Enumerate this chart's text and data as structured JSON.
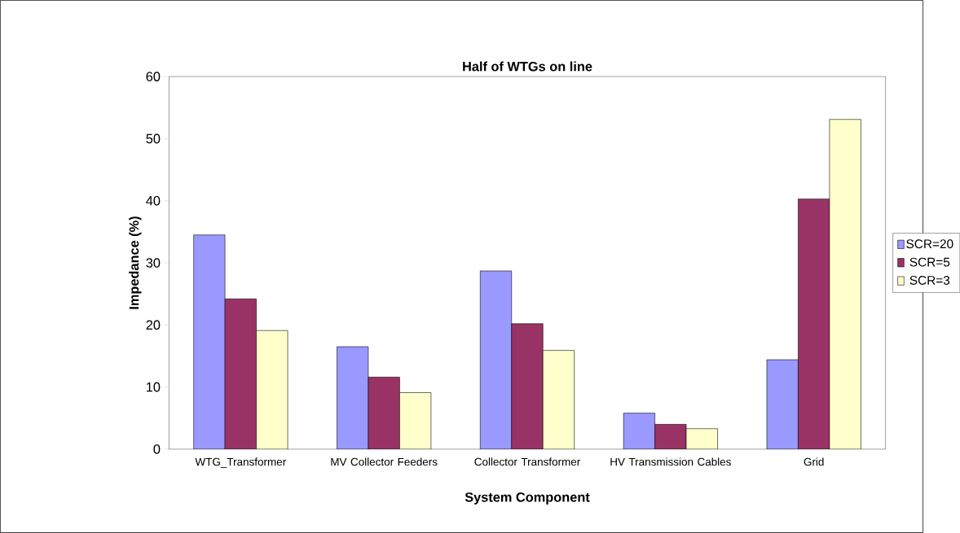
{
  "chart_data": {
    "type": "bar",
    "title": "Half of WTGs on line",
    "xlabel": "System Component",
    "ylabel": "Impedance (%)",
    "categories": [
      "WTG_Transformer",
      "MV Collector Feeders",
      "Collector Transformer",
      "HV Transmission Cables",
      "Grid"
    ],
    "series": [
      {
        "name": "SCR=20",
        "color": "#9999ff",
        "values": [
          34.5,
          16.5,
          28.7,
          5.8,
          14.4
        ]
      },
      {
        "name": "SCR=5",
        "color": "#993366",
        "values": [
          24.2,
          11.6,
          20.2,
          4.0,
          40.3
        ]
      },
      {
        "name": "SCR=3",
        "color": "#ffffcc",
        "values": [
          19.1,
          9.1,
          15.9,
          3.3,
          53.1
        ]
      }
    ],
    "ylim": [
      0,
      60
    ],
    "yticks": [
      0,
      10,
      20,
      30,
      40,
      50,
      60
    ],
    "grid": false,
    "legend": "right"
  }
}
